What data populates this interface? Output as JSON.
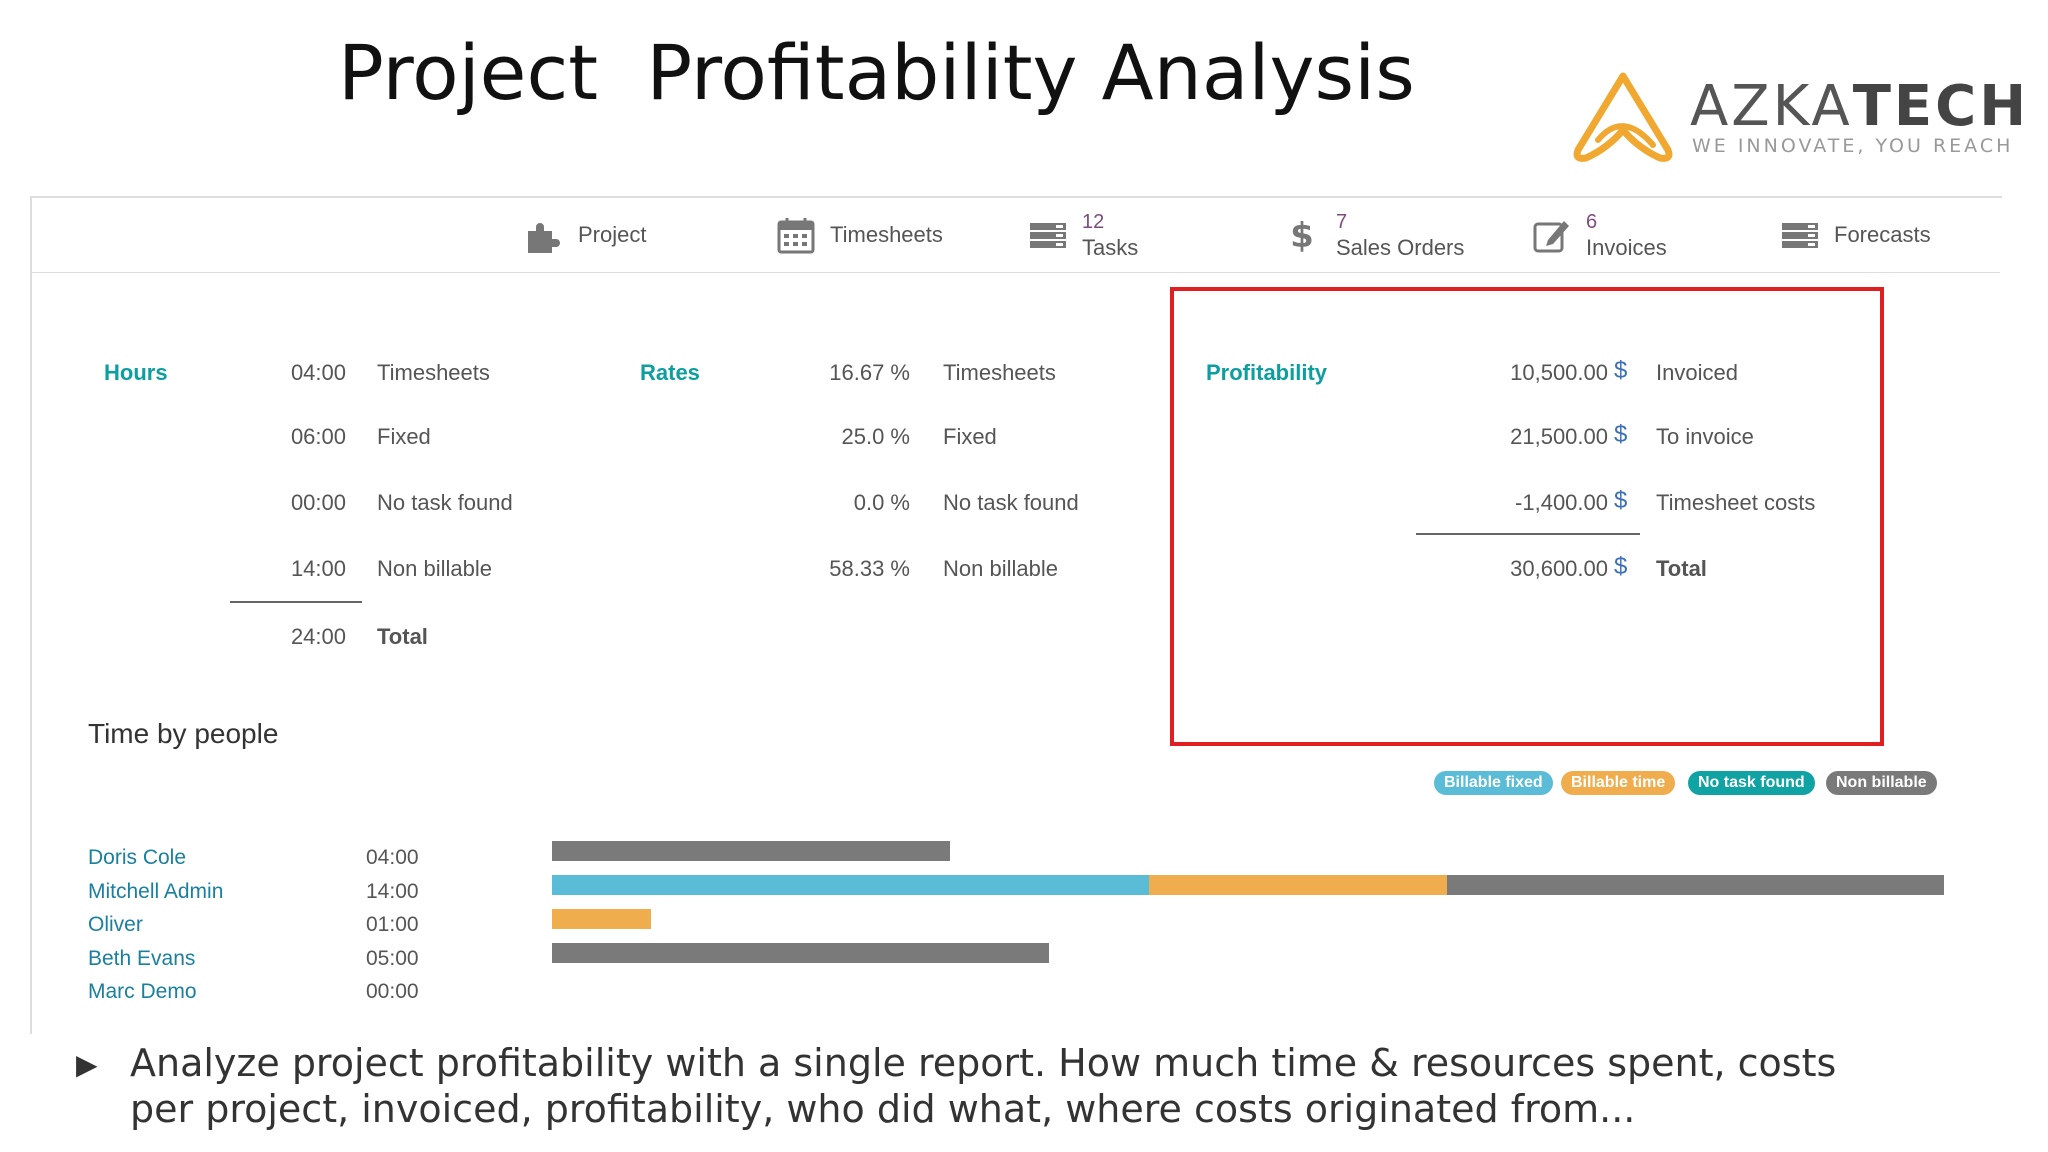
{
  "slide": {
    "title": "Project  Profitability Analysis",
    "logo_name_light": "AZKA",
    "logo_name_bold": "TECH",
    "logo_tagline": "WE INNOVATE, YOU REACH",
    "bullet_glyph": "▶",
    "bullet_text": "Analyze project profitability with a single report. How much time & resources spent, costs per project, invoiced, profitability, who did what, where costs originated from..."
  },
  "navbar": {
    "buttons": [
      {
        "icon": "puzzle-icon",
        "label": "Project",
        "count": ""
      },
      {
        "icon": "calendar-icon",
        "label": "Timesheets",
        "count": ""
      },
      {
        "icon": "tasks-icon",
        "label": "Tasks",
        "count": "12"
      },
      {
        "icon": "dollar-icon",
        "label": "Sales Orders",
        "count": "7"
      },
      {
        "icon": "edit-icon",
        "label": "Invoices",
        "count": "6"
      },
      {
        "icon": "forecasts-icon",
        "label": "Forecasts",
        "count": ""
      }
    ]
  },
  "hours": {
    "heading": "Hours",
    "rows": [
      {
        "value": "04:00",
        "label": "Timesheets"
      },
      {
        "value": "06:00",
        "label": "Fixed"
      },
      {
        "value": "00:00",
        "label": "No task found"
      },
      {
        "value": "14:00",
        "label": "Non billable"
      }
    ],
    "total_value": "24:00",
    "total_label": "Total"
  },
  "rates": {
    "heading": "Rates",
    "rows": [
      {
        "value": "16.67 %",
        "label": "Timesheets"
      },
      {
        "value": "25.0 %",
        "label": "Fixed"
      },
      {
        "value": "0.0 %",
        "label": "No task found"
      },
      {
        "value": "58.33 %",
        "label": "Non billable"
      }
    ]
  },
  "profitability": {
    "heading": "Profitability",
    "currency": "$",
    "rows": [
      {
        "value": "10,500.00",
        "label": "Invoiced"
      },
      {
        "value": "21,500.00",
        "label": "To invoice"
      },
      {
        "value": "-1,400.00",
        "label": "Timesheet costs"
      }
    ],
    "total_value": "30,600.00",
    "total_label": "Total"
  },
  "time_by_people": {
    "heading": "Time by people",
    "legend": [
      {
        "label": "Billable fixed",
        "color": "#5bbcd8"
      },
      {
        "label": "Billable time",
        "color": "#f0ad4e"
      },
      {
        "label": "No task found",
        "color": "#11a3a3"
      },
      {
        "label": "Non billable",
        "color": "#7a7a7a"
      }
    ],
    "scale_max_hours": 14,
    "people": [
      {
        "name": "Doris Cole",
        "time": "04:00",
        "segments": [
          {
            "kind": "Non billable",
            "hours": 4
          }
        ]
      },
      {
        "name": "Mitchell Admin",
        "time": "14:00",
        "segments": [
          {
            "kind": "Billable fixed",
            "hours": 6
          },
          {
            "kind": "Billable time",
            "hours": 3
          },
          {
            "kind": "Non billable",
            "hours": 5
          }
        ]
      },
      {
        "name": "Oliver",
        "time": "01:00",
        "segments": [
          {
            "kind": "Billable time",
            "hours": 1
          }
        ]
      },
      {
        "name": "Beth Evans",
        "time": "05:00",
        "segments": [
          {
            "kind": "Non billable",
            "hours": 5
          }
        ]
      },
      {
        "name": "Marc Demo",
        "time": "00:00",
        "segments": []
      }
    ]
  }
}
